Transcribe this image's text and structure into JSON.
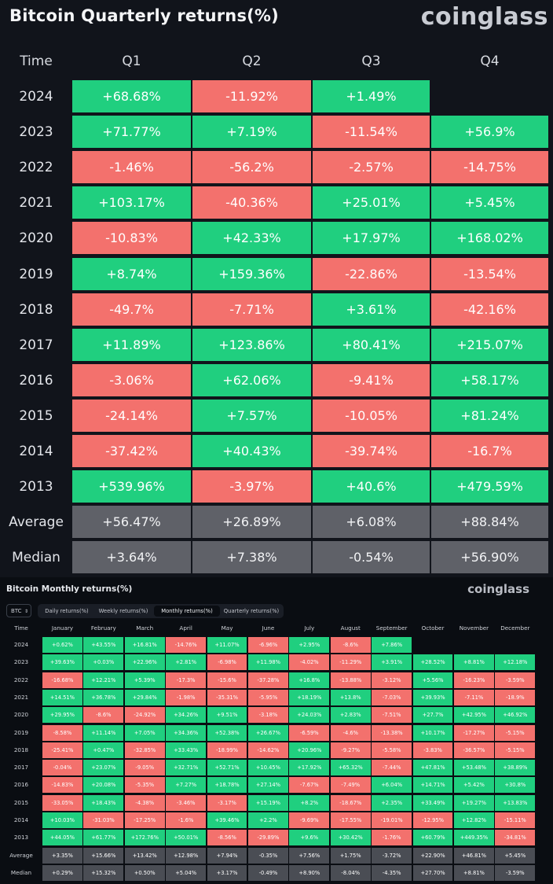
{
  "chart_data": [
    {
      "type": "table",
      "title": "Bitcoin Quarterly returns(%)",
      "brand": "coinglass",
      "row_header": "Time",
      "columns": [
        "Q1",
        "Q2",
        "Q3",
        "Q4"
      ],
      "rows": [
        {
          "year": "2024",
          "values": [
            "+68.68%",
            "-11.92%",
            "+1.49%",
            ""
          ]
        },
        {
          "year": "2023",
          "values": [
            "+71.77%",
            "+7.19%",
            "-11.54%",
            "+56.9%"
          ]
        },
        {
          "year": "2022",
          "values": [
            "-1.46%",
            "-56.2%",
            "-2.57%",
            "-14.75%"
          ]
        },
        {
          "year": "2021",
          "values": [
            "+103.17%",
            "-40.36%",
            "+25.01%",
            "+5.45%"
          ]
        },
        {
          "year": "2020",
          "values": [
            "-10.83%",
            "+42.33%",
            "+17.97%",
            "+168.02%"
          ]
        },
        {
          "year": "2019",
          "values": [
            "+8.74%",
            "+159.36%",
            "-22.86%",
            "-13.54%"
          ]
        },
        {
          "year": "2018",
          "values": [
            "-49.7%",
            "-7.71%",
            "+3.61%",
            "-42.16%"
          ]
        },
        {
          "year": "2017",
          "values": [
            "+11.89%",
            "+123.86%",
            "+80.41%",
            "+215.07%"
          ]
        },
        {
          "year": "2016",
          "values": [
            "-3.06%",
            "+62.06%",
            "-9.41%",
            "+58.17%"
          ]
        },
        {
          "year": "2015",
          "values": [
            "-24.14%",
            "+7.57%",
            "-10.05%",
            "+81.24%"
          ]
        },
        {
          "year": "2014",
          "values": [
            "-37.42%",
            "+40.43%",
            "-39.74%",
            "-16.7%"
          ]
        },
        {
          "year": "2013",
          "values": [
            "+539.96%",
            "-3.97%",
            "+40.6%",
            "+479.59%"
          ]
        }
      ],
      "stats": [
        {
          "label": "Average",
          "values": [
            "+56.47%",
            "+26.89%",
            "+6.08%",
            "+88.84%"
          ]
        },
        {
          "label": "Median",
          "values": [
            "+3.64%",
            "+7.38%",
            "-0.54%",
            "+56.90%"
          ]
        }
      ],
      "colors": {
        "positive": "#20cf7f",
        "negative": "#f3716d",
        "stat": "#5f6168"
      }
    },
    {
      "type": "table",
      "title": "Bitcoin Monthly returns(%)",
      "brand": "coinglass",
      "asset_select": "BTC",
      "tabs": [
        "Daily returns(%)",
        "Weekly returns(%)",
        "Monthly returns(%)",
        "Quarterly returns(%)"
      ],
      "active_tab": 2,
      "row_header": "Time",
      "columns": [
        "January",
        "February",
        "March",
        "April",
        "May",
        "June",
        "July",
        "August",
        "September",
        "October",
        "November",
        "December"
      ],
      "rows": [
        {
          "year": "2024",
          "values": [
            "+0.62%",
            "+43.55%",
            "+16.81%",
            "-14.76%",
            "+11.07%",
            "-6.96%",
            "+2.95%",
            "-8.6%",
            "+7.86%",
            "",
            "",
            ""
          ]
        },
        {
          "year": "2023",
          "values": [
            "+39.63%",
            "+0.03%",
            "+22.96%",
            "+2.81%",
            "-6.98%",
            "+11.98%",
            "-4.02%",
            "-11.29%",
            "+3.91%",
            "+28.52%",
            "+8.81%",
            "+12.18%"
          ]
        },
        {
          "year": "2022",
          "values": [
            "-16.68%",
            "+12.21%",
            "+5.39%",
            "-17.3%",
            "-15.6%",
            "-37.28%",
            "+16.8%",
            "-13.88%",
            "-3.12%",
            "+5.56%",
            "-16.23%",
            "-3.59%"
          ]
        },
        {
          "year": "2021",
          "values": [
            "+14.51%",
            "+36.78%",
            "+29.84%",
            "-1.98%",
            "-35.31%",
            "-5.95%",
            "+18.19%",
            "+13.8%",
            "-7.03%",
            "+39.93%",
            "-7.11%",
            "-18.9%"
          ]
        },
        {
          "year": "2020",
          "values": [
            "+29.95%",
            "-8.6%",
            "-24.92%",
            "+34.26%",
            "+9.51%",
            "-3.18%",
            "+24.03%",
            "+2.83%",
            "-7.51%",
            "+27.7%",
            "+42.95%",
            "+46.92%"
          ]
        },
        {
          "year": "2019",
          "values": [
            "-8.58%",
            "+11.14%",
            "+7.05%",
            "+34.36%",
            "+52.38%",
            "+26.67%",
            "-6.59%",
            "-4.6%",
            "-13.38%",
            "+10.17%",
            "-17.27%",
            "-5.15%"
          ]
        },
        {
          "year": "2018",
          "values": [
            "-25.41%",
            "+0.47%",
            "-32.85%",
            "+33.43%",
            "-18.99%",
            "-14.62%",
            "+20.96%",
            "-9.27%",
            "-5.58%",
            "-3.83%",
            "-36.57%",
            "-5.15%"
          ]
        },
        {
          "year": "2017",
          "values": [
            "-0.04%",
            "+23.07%",
            "-9.05%",
            "+32.71%",
            "+52.71%",
            "+10.45%",
            "+17.92%",
            "+65.32%",
            "-7.44%",
            "+47.81%",
            "+53.48%",
            "+38.89%"
          ]
        },
        {
          "year": "2016",
          "values": [
            "-14.83%",
            "+20.08%",
            "-5.35%",
            "+7.27%",
            "+18.78%",
            "+27.14%",
            "-7.67%",
            "-7.49%",
            "+6.04%",
            "+14.71%",
            "+5.42%",
            "+30.8%"
          ]
        },
        {
          "year": "2015",
          "values": [
            "-33.05%",
            "+18.43%",
            "-4.38%",
            "-3.46%",
            "-3.17%",
            "+15.19%",
            "+8.2%",
            "-18.67%",
            "+2.35%",
            "+33.49%",
            "+19.27%",
            "+13.83%"
          ]
        },
        {
          "year": "2014",
          "values": [
            "+10.03%",
            "-31.03%",
            "-17.25%",
            "-1.6%",
            "+39.46%",
            "+2.2%",
            "-9.69%",
            "-17.55%",
            "-19.01%",
            "-12.95%",
            "+12.82%",
            "-15.11%"
          ]
        },
        {
          "year": "2013",
          "values": [
            "+44.05%",
            "+61.77%",
            "+172.76%",
            "+50.01%",
            "-8.56%",
            "-29.89%",
            "+9.6%",
            "+30.42%",
            "-1.76%",
            "+60.79%",
            "+449.35%",
            "-34.81%"
          ]
        }
      ],
      "stats": [
        {
          "label": "Average",
          "values": [
            "+3.35%",
            "+15.66%",
            "+13.42%",
            "+12.98%",
            "+7.94%",
            "-0.35%",
            "+7.56%",
            "+1.75%",
            "-3.72%",
            "+22.90%",
            "+46.81%",
            "+5.45%"
          ]
        },
        {
          "label": "Median",
          "values": [
            "+0.29%",
            "+15.32%",
            "+0.50%",
            "+5.04%",
            "+3.17%",
            "-0.49%",
            "+8.90%",
            "-8.04%",
            "-4.35%",
            "+27.70%",
            "+8.81%",
            "-3.59%"
          ]
        }
      ]
    }
  ]
}
